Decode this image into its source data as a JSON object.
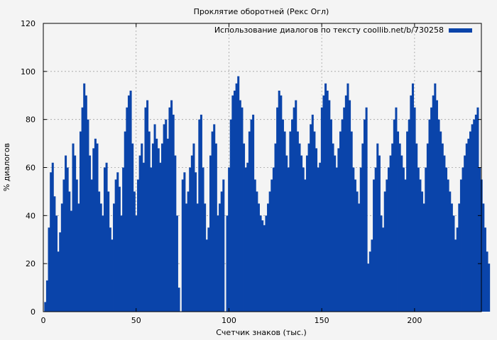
{
  "chart_data": {
    "type": "bar",
    "title": "Проклятие оборотней (Рекс Огл)",
    "xlabel": "Счетчик знаков (тыс.)",
    "ylabel": "% диалогов",
    "xlim": [
      0,
      236
    ],
    "ylim": [
      0,
      120
    ],
    "xticks": [
      0,
      50,
      100,
      150,
      200
    ],
    "yticks": [
      0,
      20,
      40,
      60,
      80,
      100,
      120
    ],
    "grid": true,
    "legend_position": "top-right",
    "colors": {
      "bar": "#0a44aa",
      "grid": "#a0a0a0",
      "background": "#f4f4f4"
    },
    "series": [
      {
        "name": "Использование диалогов по тексту coollib.net/b/730258",
        "x_start": 1,
        "x_step": 1,
        "values": [
          4,
          13,
          35,
          58,
          62,
          48,
          40,
          25,
          33,
          45,
          55,
          65,
          60,
          50,
          42,
          70,
          65,
          55,
          45,
          75,
          85,
          95,
          90,
          80,
          65,
          55,
          68,
          72,
          70,
          50,
          45,
          40,
          60,
          62,
          50,
          35,
          30,
          45,
          55,
          58,
          52,
          40,
          60,
          75,
          85,
          90,
          92,
          70,
          50,
          40,
          55,
          65,
          70,
          62,
          85,
          88,
          75,
          60,
          70,
          78,
          72,
          68,
          62,
          70,
          78,
          80,
          72,
          85,
          88,
          82,
          65,
          40,
          10,
          0,
          55,
          58,
          45,
          50,
          60,
          65,
          70,
          58,
          45,
          80,
          82,
          60,
          45,
          30,
          35,
          65,
          75,
          78,
          70,
          40,
          45,
          50,
          55,
          0,
          40,
          60,
          80,
          90,
          92,
          95,
          98,
          88,
          85,
          70,
          60,
          62,
          75,
          80,
          82,
          55,
          50,
          45,
          40,
          38,
          36,
          40,
          45,
          50,
          55,
          60,
          70,
          85,
          92,
          90,
          80,
          75,
          65,
          60,
          75,
          80,
          85,
          88,
          75,
          70,
          65,
          60,
          55,
          65,
          70,
          78,
          82,
          75,
          68,
          60,
          62,
          85,
          90,
          95,
          92,
          88,
          80,
          70,
          65,
          60,
          68,
          75,
          80,
          85,
          90,
          95,
          88,
          75,
          60,
          55,
          50,
          45,
          60,
          70,
          80,
          85,
          20,
          25,
          30,
          55,
          60,
          70,
          65,
          40,
          35,
          50,
          55,
          60,
          65,
          70,
          80,
          85,
          75,
          70,
          65,
          60,
          55,
          75,
          80,
          90,
          95,
          85,
          70,
          60,
          55,
          50,
          45,
          60,
          70,
          80,
          85,
          90,
          95,
          88,
          80,
          75,
          70,
          65,
          60,
          55,
          50,
          45,
          40,
          30,
          35,
          45,
          55,
          60,
          65,
          70,
          72,
          75,
          78,
          80,
          82,
          85,
          60,
          55,
          45,
          35,
          25,
          20
        ]
      }
    ]
  }
}
